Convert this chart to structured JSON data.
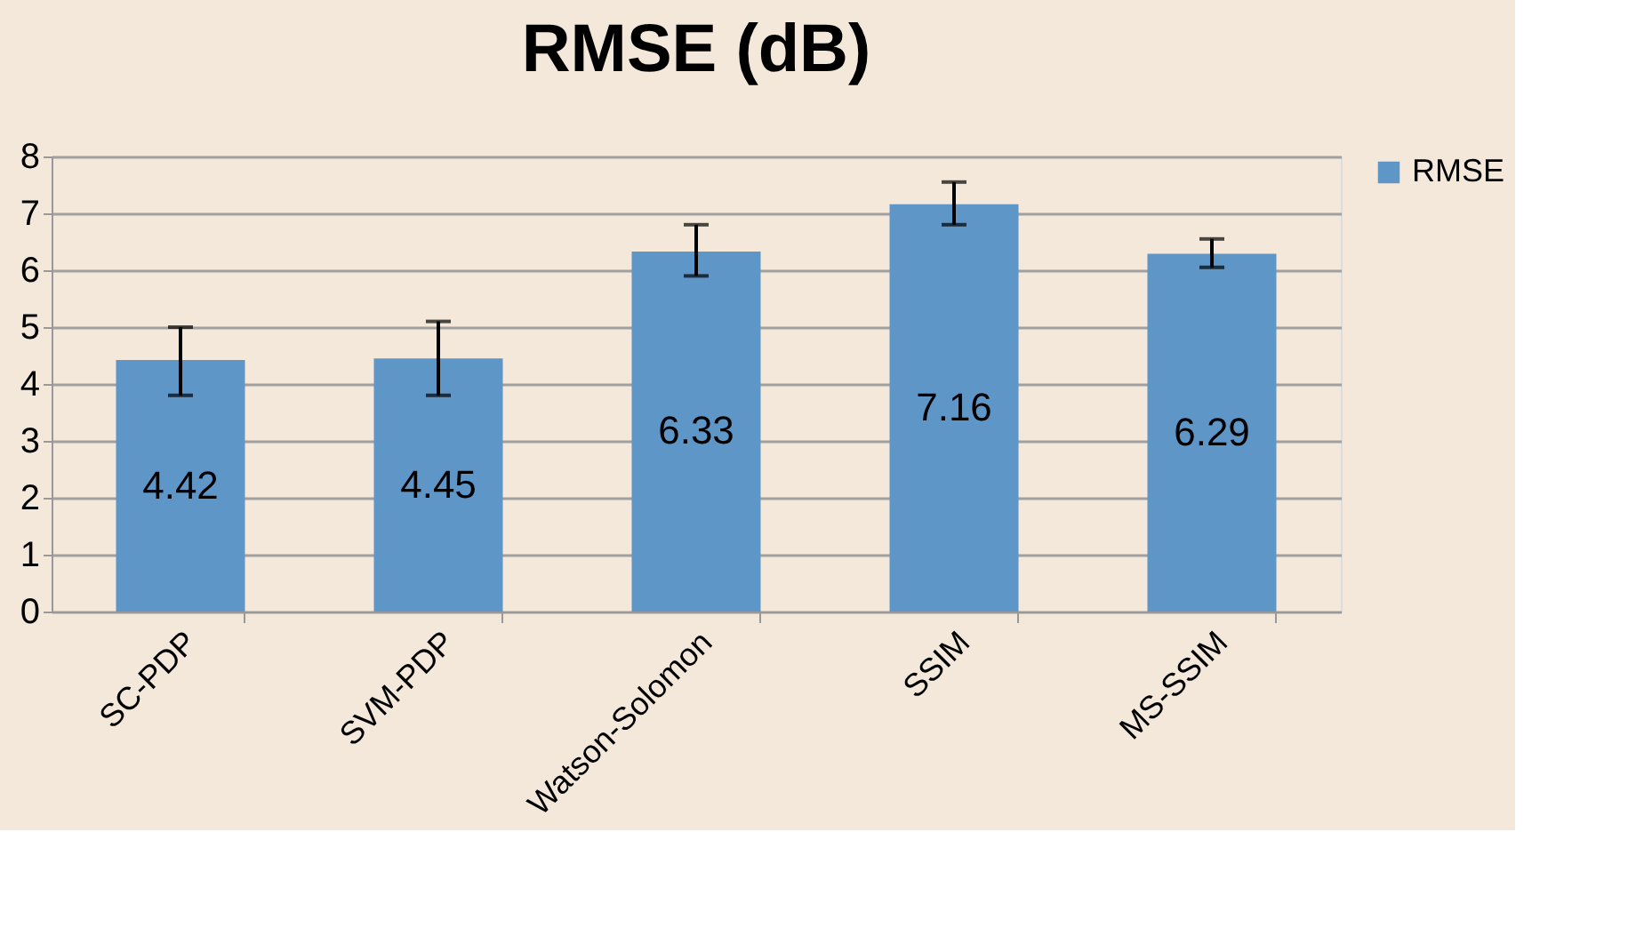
{
  "chart_data": {
    "type": "bar",
    "title": "RMSE (dB)",
    "categories": [
      "SC-PDP",
      "SVM-PDP",
      "Watson-Solomon",
      "SSIM",
      "MS-SSIM"
    ],
    "series": [
      {
        "name": "RMSE",
        "color": "#5f96c8",
        "values": [
          4.42,
          4.45,
          6.33,
          7.16,
          6.29
        ],
        "errors": [
          [
            3.8,
            5.0
          ],
          [
            3.8,
            5.1
          ],
          [
            5.9,
            6.8
          ],
          [
            6.8,
            7.55
          ],
          [
            6.05,
            6.55
          ]
        ]
      }
    ],
    "ylim": [
      0,
      8
    ],
    "yticks": [
      0,
      1,
      2,
      3,
      4,
      5,
      6,
      7,
      8
    ],
    "grid": "y",
    "legend": "right",
    "data_labels": true
  }
}
